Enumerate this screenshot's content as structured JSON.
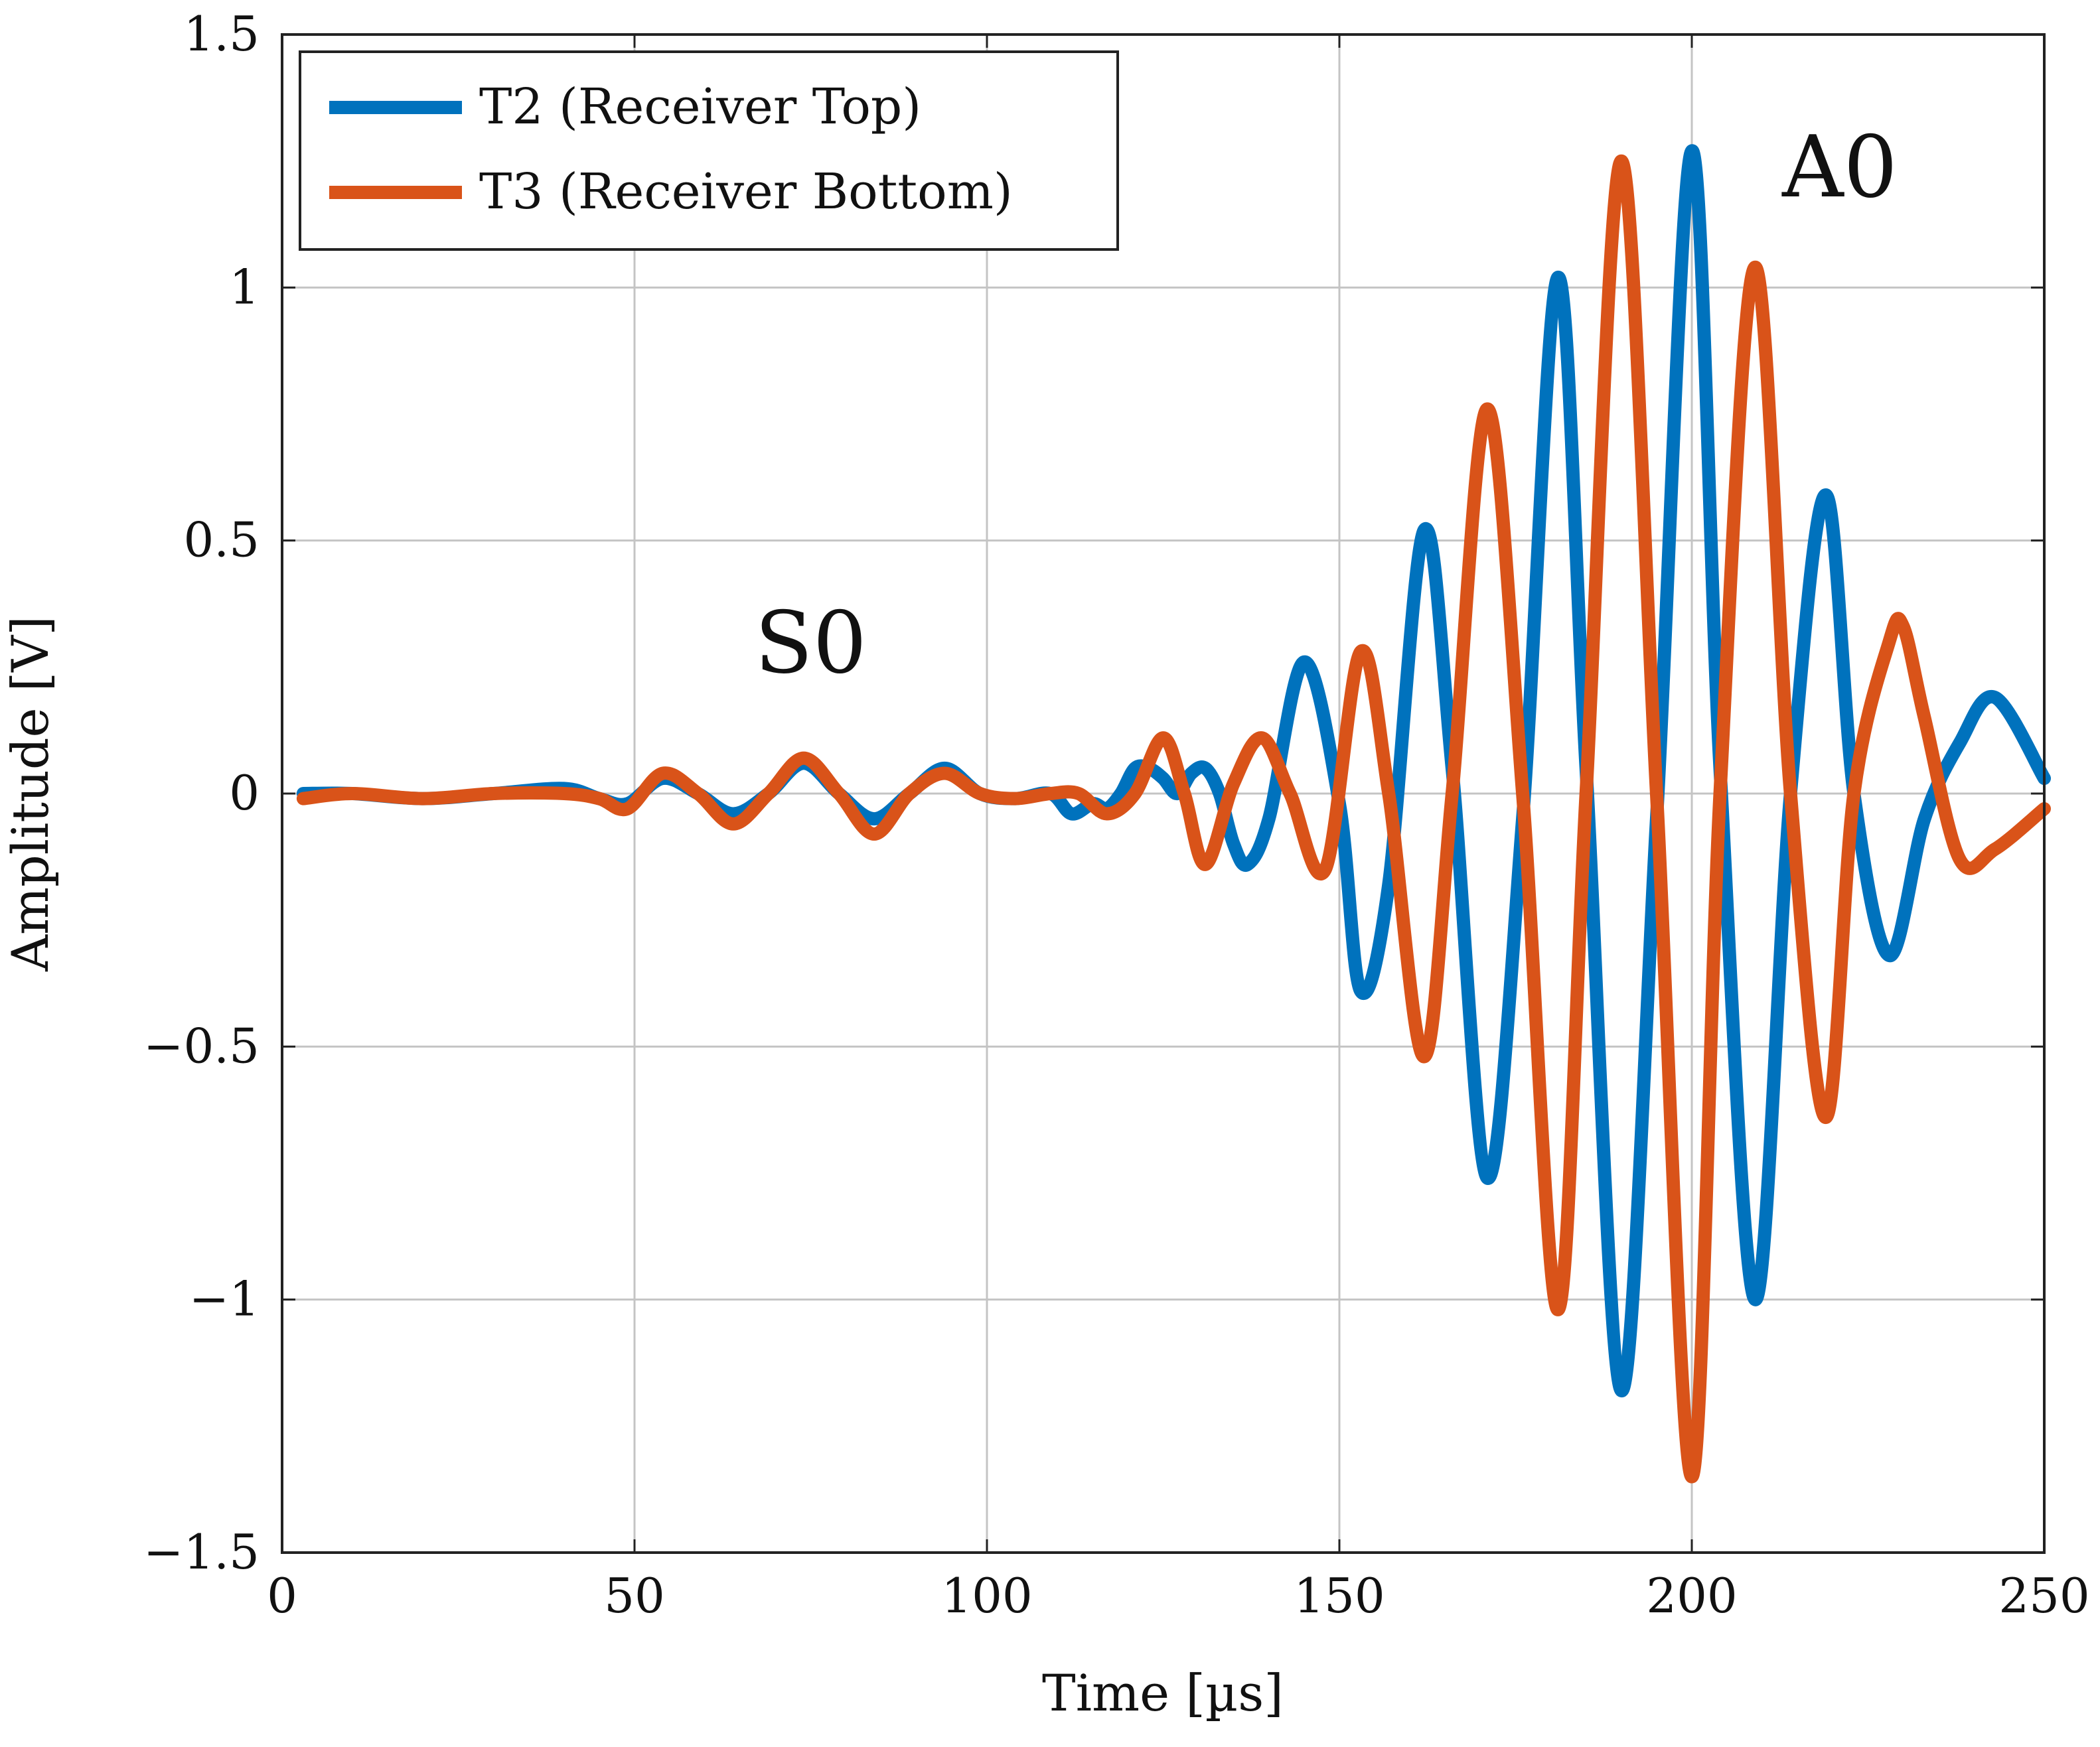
{
  "chart_data": {
    "type": "line",
    "title": "",
    "xlabel": "Time [µs]",
    "ylabel": "Amplitude [V]",
    "xlim": [
      0,
      250
    ],
    "ylim": [
      -1.5,
      1.5
    ],
    "grid": true,
    "xticks": [
      0,
      50,
      100,
      150,
      200,
      250
    ],
    "xtick_labels": [
      "0",
      "50",
      "100",
      "150",
      "200",
      "250"
    ],
    "yticks": [
      -1.5,
      -1,
      -0.5,
      0,
      0.5,
      1,
      1.5
    ],
    "ytick_labels": [
      "−1.5",
      "−1",
      "−0.5",
      "0",
      "0.5",
      "1",
      "1.5"
    ],
    "legend": {
      "position": "top-left",
      "entries": [
        {
          "label": "T2 (Receiver Top)",
          "color": "#0072BD"
        },
        {
          "label": "T3 (Receiver Bottom)",
          "color": "#D95319"
        }
      ]
    },
    "annotations": [
      {
        "text": "S0",
        "x": 75,
        "y": 0.24
      },
      {
        "text": "A0",
        "x": 221,
        "y": 1.18
      }
    ],
    "series": [
      {
        "name": "T2 (Receiver Top)",
        "color": "#0072BD",
        "x": [
          3,
          10,
          20,
          30,
          40,
          45,
          49,
          54,
          59,
          64,
          69,
          74,
          79,
          84,
          89,
          94,
          99,
          104,
          109,
          112,
          115,
          117,
          119,
          121,
          123,
          125,
          127,
          129,
          131,
          133,
          135,
          137,
          140,
          145,
          150,
          153,
          157,
          162,
          166,
          171,
          176,
          181,
          185,
          190,
          195,
          200,
          204,
          209,
          214,
          219,
          223,
          228,
          233,
          238,
          243,
          250
        ],
        "values": [
          0.0,
          0.0,
          -0.01,
          0.0,
          0.01,
          -0.01,
          -0.02,
          0.03,
          0.0,
          -0.04,
          0.0,
          0.06,
          0.0,
          -0.05,
          0.0,
          0.05,
          0.0,
          -0.01,
          0.0,
          -0.04,
          -0.02,
          -0.03,
          0.0,
          0.05,
          0.05,
          0.03,
          0.0,
          0.04,
          0.05,
          0.0,
          -0.1,
          -0.14,
          -0.05,
          0.26,
          -0.02,
          -0.39,
          -0.18,
          0.52,
          0.05,
          -0.76,
          -0.05,
          1.02,
          0.05,
          -1.18,
          -0.05,
          1.27,
          0.05,
          -1.0,
          0.0,
          0.59,
          0.0,
          -0.32,
          -0.05,
          0.1,
          0.19,
          0.03
        ]
      },
      {
        "name": "T3 (Receiver Bottom)",
        "color": "#D95319",
        "x": [
          3,
          10,
          20,
          30,
          40,
          45,
          49,
          54,
          59,
          64,
          69,
          74,
          79,
          84,
          89,
          94,
          99,
          104,
          109,
          113,
          117,
          121,
          125,
          128,
          131,
          135,
          139,
          143,
          148,
          153,
          157,
          162,
          166,
          171,
          176,
          181,
          185,
          190,
          195,
          200,
          204,
          209,
          214,
          219,
          223,
          228,
          230,
          233,
          238,
          243,
          250
        ],
        "values": [
          -0.01,
          0.0,
          -0.01,
          0.0,
          0.0,
          -0.01,
          -0.03,
          0.04,
          0.0,
          -0.06,
          0.0,
          0.07,
          0.0,
          -0.08,
          0.0,
          0.04,
          0.0,
          -0.01,
          0.0,
          0.0,
          -0.04,
          0.0,
          0.11,
          0.0,
          -0.14,
          0.02,
          0.11,
          0.0,
          -0.15,
          0.28,
          0.0,
          -0.52,
          0.0,
          0.76,
          0.0,
          -1.02,
          0.0,
          1.25,
          0.0,
          -1.35,
          0.0,
          1.04,
          0.0,
          -0.64,
          0.0,
          0.3,
          0.33,
          0.15,
          -0.13,
          -0.11,
          -0.03
        ]
      }
    ]
  }
}
